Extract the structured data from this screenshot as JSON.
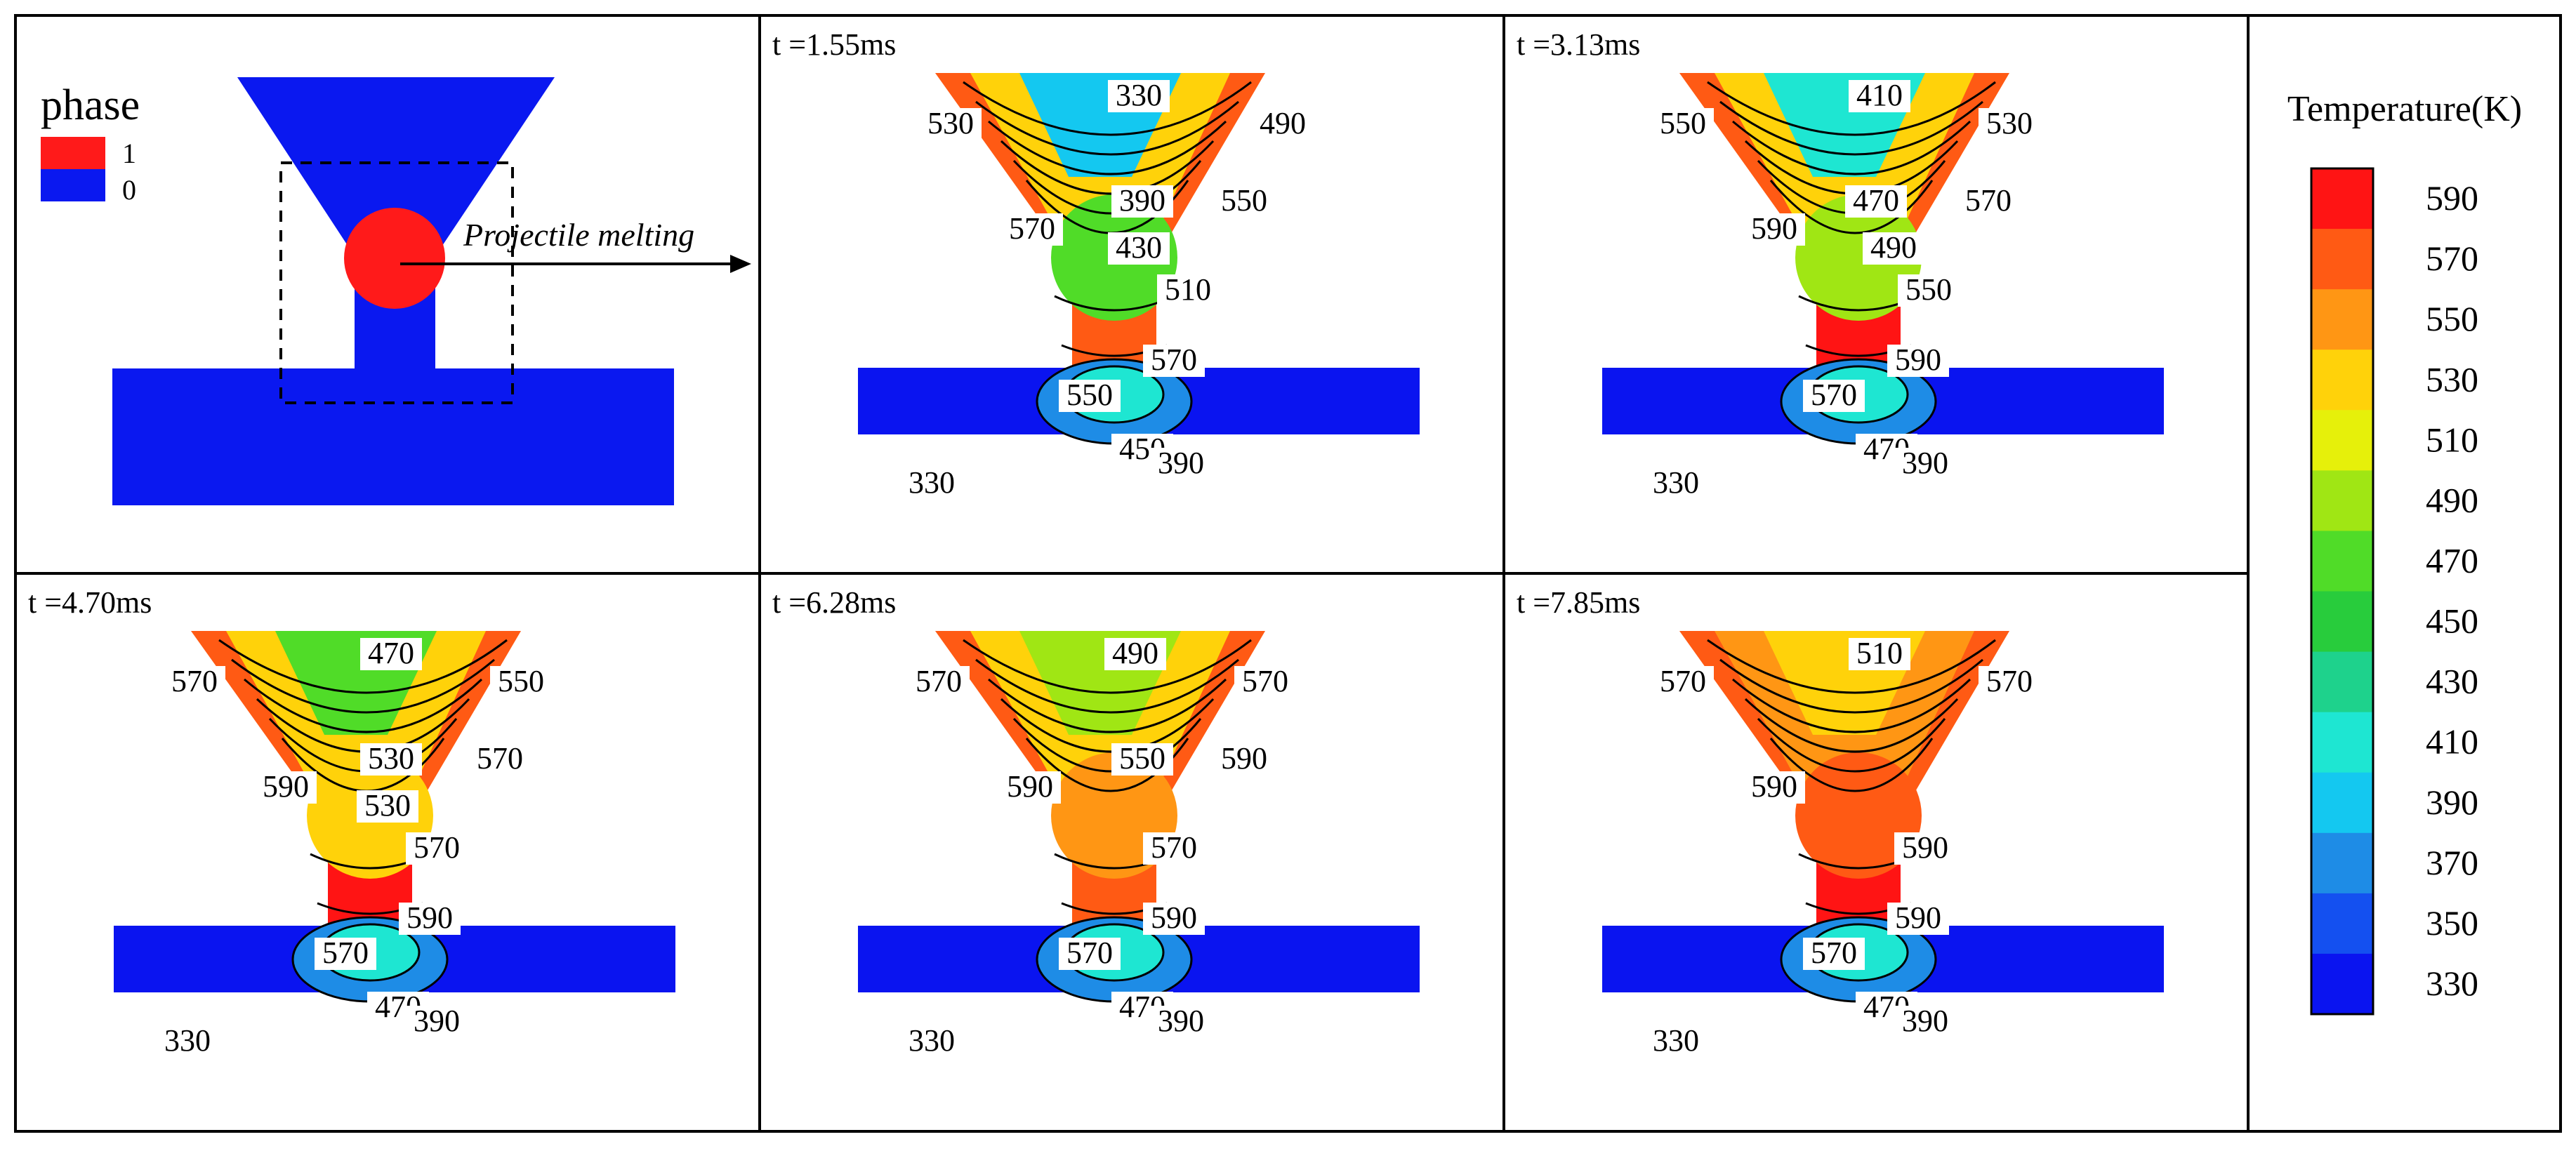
{
  "phase_panel": {
    "title": "phase",
    "legend": [
      {
        "label": "1",
        "color": "#ff1a1a"
      },
      {
        "label": "0",
        "color": "#0a18f0"
      }
    ],
    "annotation": "Projectile melting"
  },
  "panels": [
    {
      "time": "t =1.55ms",
      "labels": [
        "330",
        "530",
        "490",
        "390",
        "550",
        "570",
        "430",
        "510",
        "570",
        "550",
        "450",
        "390",
        "330"
      ]
    },
    {
      "time": "t =3.13ms",
      "labels": [
        "410",
        "550",
        "530",
        "470",
        "570",
        "590",
        "490",
        "550",
        "590",
        "570",
        "470",
        "390",
        "330"
      ]
    },
    {
      "time": "t =4.70ms",
      "labels": [
        "470",
        "570",
        "550",
        "530",
        "570",
        "590",
        "530",
        "570",
        "590",
        "570",
        "470",
        "390",
        "330"
      ]
    },
    {
      "time": "t =6.28ms",
      "labels": [
        "490",
        "570",
        "570",
        "550",
        "590",
        "590",
        "570",
        "590",
        "570",
        "470",
        "390",
        "330"
      ]
    },
    {
      "time": "t =7.85ms",
      "labels": [
        "510",
        "570",
        "570",
        "590",
        "590",
        "590",
        "570",
        "470",
        "390",
        "330"
      ]
    }
  ],
  "colorbar": {
    "title": "Temperature(K)",
    "ticks": [
      "590",
      "570",
      "550",
      "530",
      "510",
      "490",
      "470",
      "450",
      "430",
      "410",
      "390",
      "370",
      "350",
      "330"
    ],
    "colors": [
      "#ff1414",
      "#ff5a14",
      "#ff9614",
      "#ffd20a",
      "#e6f00a",
      "#a0e614",
      "#50dc28",
      "#28cc3c",
      "#1ed28c",
      "#1ee6d2",
      "#14c8f0",
      "#1e8ce6",
      "#1450f0",
      "#0a14f0"
    ]
  },
  "colors": {
    "projectile": "#ff1a1a",
    "target_blue": "#0a18f0"
  }
}
